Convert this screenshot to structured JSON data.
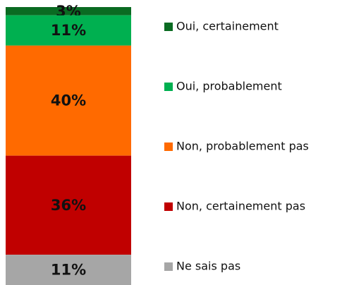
{
  "chart_data": {
    "type": "bar",
    "stacked": true,
    "categories": [
      null
    ],
    "series": [
      {
        "name": "Oui, certainement",
        "color": "#0a6b22",
        "values": [
          3
        ],
        "value_labels": [
          "3%"
        ]
      },
      {
        "name": "Oui, probablement",
        "color": "#00b050",
        "values": [
          11
        ],
        "value_labels": [
          "11%"
        ]
      },
      {
        "name": "Non, probablement pas",
        "color": "#ff6a00",
        "values": [
          40
        ],
        "value_labels": [
          "40%"
        ]
      },
      {
        "name": "Non, certainement pas",
        "color": "#c00000",
        "values": [
          36
        ],
        "value_labels": [
          "36%"
        ]
      },
      {
        "name": "Ne sais pas",
        "color": "#a6a6a6",
        "values": [
          11
        ],
        "value_labels": [
          "11%"
        ]
      }
    ],
    "legend": "right"
  }
}
